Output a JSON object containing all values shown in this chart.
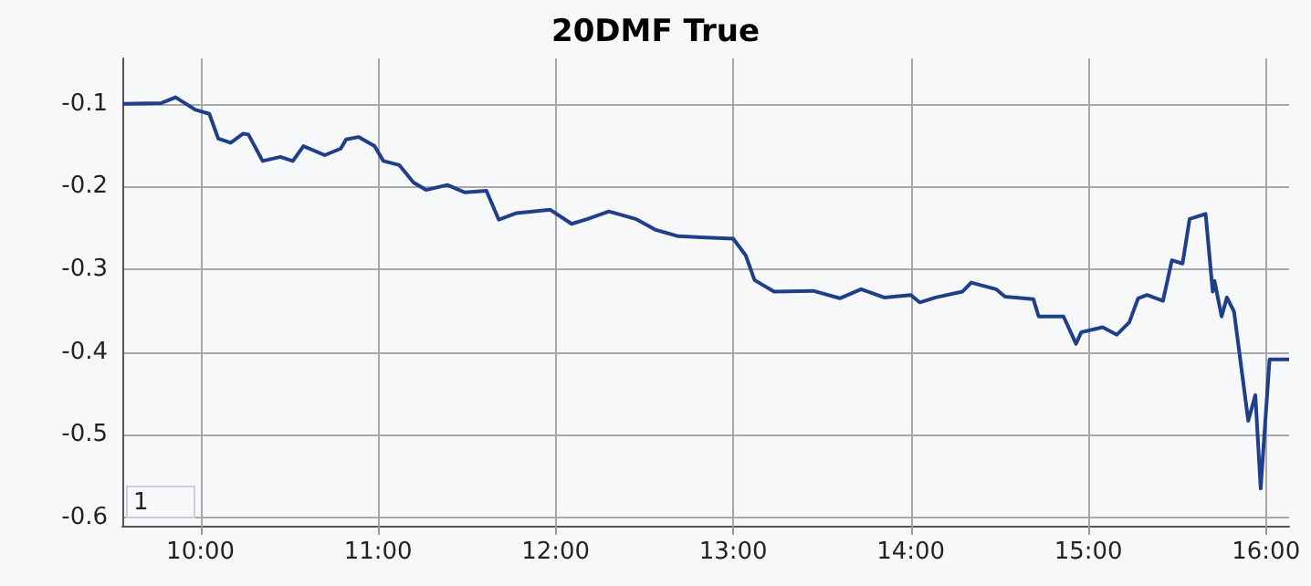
{
  "chart_data": {
    "type": "line",
    "title": "20DMF True",
    "x": [
      9.56,
      9.78,
      9.86,
      9.97,
      10.05,
      10.1,
      10.17,
      10.24,
      10.27,
      10.35,
      10.45,
      10.52,
      10.58,
      10.7,
      10.79,
      10.82,
      10.89,
      10.98,
      11.03,
      11.12,
      11.2,
      11.27,
      11.39,
      11.49,
      11.61,
      11.68,
      11.78,
      11.97,
      12.09,
      12.18,
      12.3,
      12.45,
      12.56,
      12.69,
      13.0,
      13.07,
      13.12,
      13.23,
      13.45,
      13.6,
      13.72,
      13.85,
      14.0,
      14.05,
      14.14,
      14.29,
      14.34,
      14.48,
      14.53,
      14.69,
      14.72,
      14.86,
      14.93,
      14.96,
      15.08,
      15.16,
      15.23,
      15.28,
      15.33,
      15.42,
      15.47,
      15.53,
      15.57,
      15.66,
      15.7,
      15.71,
      15.75,
      15.78,
      15.82,
      15.9,
      15.94,
      15.97,
      16.02,
      16.13
    ],
    "series": [
      {
        "color": "#1f3f8a",
        "values": [
          -0.1,
          -0.099,
          -0.092,
          -0.107,
          -0.112,
          -0.142,
          -0.147,
          -0.136,
          -0.137,
          -0.169,
          -0.164,
          -0.169,
          -0.151,
          -0.162,
          -0.154,
          -0.143,
          -0.14,
          -0.151,
          -0.169,
          -0.174,
          -0.195,
          -0.204,
          -0.198,
          -0.207,
          -0.205,
          -0.24,
          -0.232,
          -0.228,
          -0.245,
          -0.239,
          -0.23,
          -0.239,
          -0.252,
          -0.26,
          -0.263,
          -0.283,
          -0.313,
          -0.327,
          -0.326,
          -0.335,
          -0.324,
          -0.334,
          -0.331,
          -0.34,
          -0.334,
          -0.327,
          -0.316,
          -0.324,
          -0.333,
          -0.336,
          -0.357,
          -0.357,
          -0.39,
          -0.376,
          -0.37,
          -0.379,
          -0.364,
          -0.335,
          -0.331,
          -0.338,
          -0.289,
          -0.293,
          -0.239,
          -0.233,
          -0.327,
          -0.314,
          -0.357,
          -0.334,
          -0.351,
          -0.483,
          -0.452,
          -0.565,
          -0.409,
          -0.409
        ]
      }
    ],
    "xlim": [
      9.56,
      16.13
    ],
    "ylim": [
      -0.61,
      -0.045
    ],
    "xticks": [
      {
        "value": 10,
        "label": "10:00"
      },
      {
        "value": 11,
        "label": "11:00"
      },
      {
        "value": 12,
        "label": "12:00"
      },
      {
        "value": 13,
        "label": "13:00"
      },
      {
        "value": 14,
        "label": "14:00"
      },
      {
        "value": 15,
        "label": "15:00"
      },
      {
        "value": 16,
        "label": "16:00"
      }
    ],
    "yticks": [
      -0.1,
      -0.2,
      -0.3,
      -0.4,
      -0.5,
      -0.6
    ],
    "grid": true,
    "marker": "none",
    "line_style": "solid",
    "annotations": [
      "1"
    ]
  }
}
